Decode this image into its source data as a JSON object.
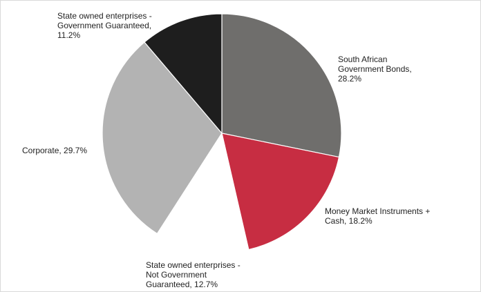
{
  "chart_data": {
    "type": "pie",
    "start_angle_deg": 0,
    "direction": "clockwise",
    "slices": [
      {
        "name": "South African Government Bonds",
        "value": 28.2,
        "color": "#6f6e6c",
        "label_lines": [
          "South African",
          "Government Bonds,",
          "28.2%"
        ]
      },
      {
        "name": "Money Market Instruments + Cash",
        "value": 18.2,
        "color": "#c72d42",
        "label_lines": [
          "Money Market Instruments +",
          "Cash, 18.2%"
        ]
      },
      {
        "name": "State owned enterprises - Not Government Guaranteed",
        "value": 12.7,
        "color": "#ffffff",
        "label_lines": [
          "State owned enterprises -",
          "Not Government",
          "Guaranteed, 12.7%"
        ]
      },
      {
        "name": "Corporate",
        "value": 29.7,
        "color": "#b3b3b3",
        "label_lines": [
          "Corporate, 29.7%"
        ]
      },
      {
        "name": "State owned enterprises - Government Guaranteed",
        "value": 11.2,
        "color": "#1e1e1e",
        "label_lines": [
          "State owned enterprises -",
          "Government Guaranteed,",
          "11.2%"
        ]
      }
    ]
  }
}
